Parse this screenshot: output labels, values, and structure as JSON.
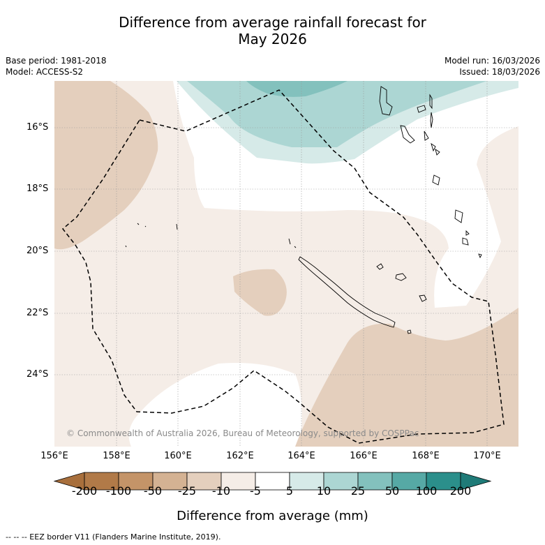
{
  "title_line1": "Difference from average rainfall forecast for",
  "title_line2": "May 2026",
  "base_period": "Base period: 1981-2018",
  "model": "Model: ACCESS-S2",
  "model_run": "Model run: 16/03/2026",
  "issued": "Issued: 18/03/2026",
  "lat_labels": [
    "16°S",
    "18°S",
    "20°S",
    "22°S",
    "24°S"
  ],
  "lon_labels": [
    "156°E",
    "158°E",
    "160°E",
    "162°E",
    "164°E",
    "166°E",
    "168°E",
    "170°E"
  ],
  "copyright": "© Commonwealth of Australia 2026, Bureau of Meteorology, supported by COSPPac",
  "colorbar": {
    "ticks": [
      "-200",
      "-100",
      "-50",
      "-25",
      "-10",
      "-5",
      "5",
      "10",
      "25",
      "50",
      "100",
      "200"
    ],
    "colors": [
      "#a86f3c",
      "#b17a48",
      "#c49468",
      "#d4b293",
      "#e4cfbd",
      "#f5ede7",
      "#ffffff",
      "#d6eae8",
      "#acd6d3",
      "#83c1bd",
      "#56a9a5",
      "#2b8f8b",
      "#1f7b78"
    ],
    "title": "Difference from average (mm)"
  },
  "footnote": "--  --  -- EEZ border V11 (Flanders Marine Institute, 2019).",
  "legend_colors": {
    "dry_light": "#f5ede7",
    "dry_medium": "#e4cfbd",
    "wet_light": "#d6eae8",
    "wet_medium": "#acd6d3",
    "wet_strong": "#83c1bd"
  }
}
